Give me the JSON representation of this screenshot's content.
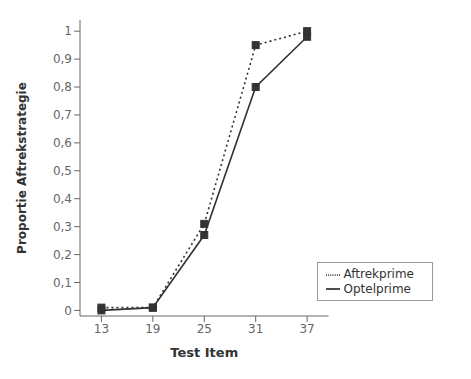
{
  "chart_data": {
    "type": "line",
    "xlabel": "Test Item",
    "ylabel": "Proportie Aftrekstrategie",
    "x": [
      13,
      19,
      25,
      31,
      37
    ],
    "series": [
      {
        "name": "Optelprime",
        "color": "#333333",
        "values": [
          0.0,
          0.01,
          0.27,
          0.8,
          0.98
        ],
        "marker": "square",
        "line_style": "solid"
      },
      {
        "name": "Aftrekprime",
        "color": "#333333",
        "values": [
          0.01,
          0.01,
          0.31,
          0.95,
          1.0
        ],
        "marker": "square",
        "line_style": "dotted"
      }
    ],
    "xlim": [
      10.5,
      39.5
    ],
    "xticks": [
      13,
      19,
      25,
      31,
      37
    ],
    "ylim": [
      -0.02,
      1.04
    ],
    "yticks": [
      0,
      {
        "value": 0.1,
        "label": "0,1"
      },
      {
        "value": 0.2,
        "label": "0,2"
      },
      {
        "value": 0.3,
        "label": "0,3"
      },
      {
        "value": 0.4,
        "label": "0,4"
      },
      {
        "value": 0.5,
        "label": "0,5"
      },
      {
        "value": 0.6,
        "label": "0,6"
      },
      {
        "value": 0.7,
        "label": "0,7"
      },
      {
        "value": 0.8,
        "label": "0,8"
      },
      {
        "value": 0.9,
        "label": "0,9"
      },
      1
    ],
    "grid": false,
    "legend": "lower right"
  }
}
